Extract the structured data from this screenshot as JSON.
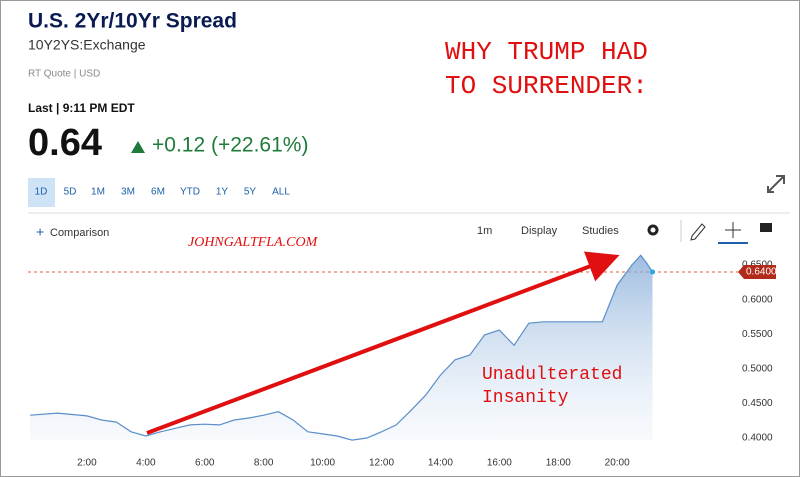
{
  "header": {
    "title": "U.S. 2Yr/10Yr Spread",
    "symbol": "10Y2YS:Exchange",
    "quote_type": "RT Quote | USD",
    "last_time": "Last | 9:11 PM EDT",
    "price": "0.64",
    "change": "+0.12 (+22.61%)"
  },
  "ranges": [
    "1D",
    "5D",
    "1M",
    "3M",
    "6M",
    "YTD",
    "1Y",
    "5Y",
    "ALL"
  ],
  "toolbar": {
    "comparison": "Comparison",
    "interval": "1m",
    "display": "Display",
    "studies": "Studies"
  },
  "annotations": {
    "headline_1": "WHY TRUMP HAD",
    "headline_2": "TO SURRENDER:",
    "source": "JOHNGALTFLA.COM",
    "note_1": "Unadulterated",
    "note_2": "Insanity"
  },
  "chart_data": {
    "type": "line",
    "color": "#5b8fc9",
    "x": [
      0.07,
      1,
      2,
      2.5,
      3,
      3.5,
      4,
      4.5,
      5,
      5.5,
      6,
      6.5,
      7,
      7.5,
      8,
      8.5,
      9,
      9.5,
      10,
      10.5,
      11,
      11.5,
      12,
      12.5,
      13,
      13.5,
      14,
      14.5,
      15,
      15.5,
      16,
      16.5,
      17,
      17.5,
      18,
      18.5,
      19,
      19.5,
      19.8,
      20,
      20.5,
      20.8,
      21,
      21.2
    ],
    "values": [
      0.433,
      0.436,
      0.432,
      0.426,
      0.423,
      0.409,
      0.403,
      0.409,
      0.414,
      0.419,
      0.42,
      0.419,
      0.426,
      0.429,
      0.433,
      0.438,
      0.426,
      0.409,
      0.406,
      0.403,
      0.397,
      0.4,
      0.409,
      0.419,
      0.44,
      0.462,
      0.491,
      0.513,
      0.52,
      0.549,
      0.556,
      0.534,
      0.566,
      0.568,
      0.568,
      0.568,
      0.568,
      0.568,
      0.6,
      0.621,
      0.65,
      0.664,
      0.653,
      0.64
    ],
    "xlim": [
      0,
      24
    ],
    "ylim": [
      0.3538,
      0.6645
    ],
    "xticks": [
      {
        "value": 2,
        "label": "2:00"
      },
      {
        "value": 4,
        "label": "4:00"
      },
      {
        "value": 6,
        "label": "6:00"
      },
      {
        "value": 8,
        "label": "8:00"
      },
      {
        "value": 10,
        "label": "10:00"
      },
      {
        "value": 12,
        "label": "12:00"
      },
      {
        "value": 14,
        "label": "14:00"
      },
      {
        "value": 16,
        "label": "16:00"
      },
      {
        "value": 18,
        "label": "18:00"
      },
      {
        "value": 20,
        "label": "20:00"
      }
    ],
    "yticks": [
      {
        "value": 0.4,
        "label": "0.4000"
      },
      {
        "value": 0.45,
        "label": "0.4500"
      },
      {
        "value": 0.5,
        "label": "0.5000"
      },
      {
        "value": 0.55,
        "label": "0.5500"
      },
      {
        "value": 0.6,
        "label": "0.6000"
      },
      {
        "value": 0.65,
        "label": "0.6500"
      }
    ],
    "last": {
      "value": 0.64,
      "label": "0.6400"
    }
  }
}
